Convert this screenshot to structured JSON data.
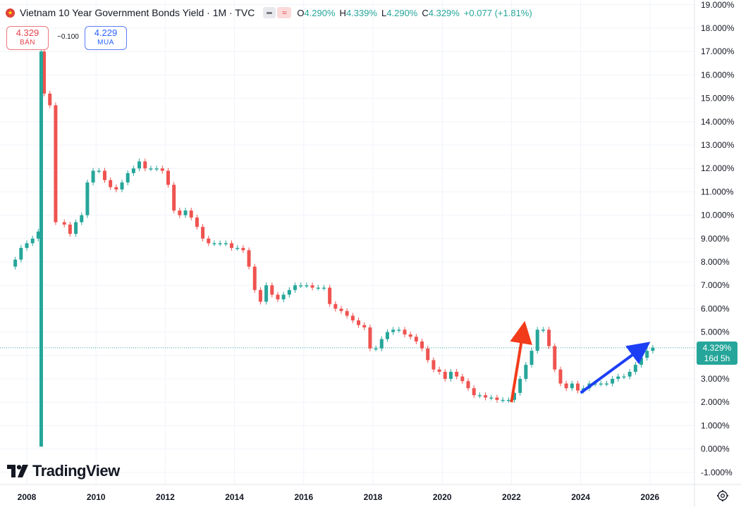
{
  "legend": {
    "title": "Vietnam 10 Year Government Bonds Yield · 1M · TVC",
    "open_label": "O",
    "open": "4.290%",
    "high_label": "H",
    "high": "4.339%",
    "low_label": "L",
    "low": "4.290%",
    "close_label": "C",
    "close": "4.329%",
    "change": "+0.077 (+1.81%)",
    "flag_icon": "vietnam-flag-icon"
  },
  "trade": {
    "sell_price": "4.329",
    "sell_label": "BÁN",
    "spread": "−0.100",
    "buy_price": "4.229",
    "buy_label": "MUA"
  },
  "last_price": {
    "value": "4.329%",
    "countdown": "16d 5h"
  },
  "brand": {
    "name": "TradingView"
  },
  "colors": {
    "up": "#26a69a",
    "down": "#ef5350",
    "accent": "#2962ff",
    "grid": "#f0f3fa",
    "annotation_up": "#f23b1a",
    "annotation_trend": "#1c3ff5"
  },
  "chart_data": {
    "type": "candlestick",
    "frequency": "1M",
    "title": "Vietnam 10 Year Government Bonds Yield · 1M · TVC",
    "ylim": [
      -1.5,
      19.2
    ],
    "y_ticks": [
      "19.000%",
      "18.000%",
      "17.000%",
      "16.000%",
      "15.000%",
      "14.000%",
      "13.000%",
      "12.000%",
      "11.000%",
      "10.000%",
      "9.000%",
      "8.000%",
      "7.000%",
      "6.000%",
      "5.000%",
      "4.000%",
      "3.000%",
      "2.000%",
      "1.000%",
      "0.000%",
      "-1.000%"
    ],
    "x_ticks": [
      "2008",
      "2010",
      "2012",
      "2014",
      "2016",
      "2018",
      "2020",
      "2022",
      "2024",
      "2026"
    ],
    "last_value": 4.329,
    "series": [
      {
        "name": "Vietnam 10 Year Government Bonds Yield",
        "points": [
          [
            "2007-09",
            8.1
          ],
          [
            "2007-11",
            8.6
          ],
          [
            "2008-01",
            8.8
          ],
          [
            "2008-03",
            9.0
          ],
          [
            "2008-05",
            9.3
          ],
          [
            "2008-06",
            17.0
          ],
          [
            "2008-07",
            15.2
          ],
          [
            "2008-09",
            14.7
          ],
          [
            "2008-11",
            9.7
          ],
          [
            "2009-02",
            9.6
          ],
          [
            "2009-04",
            9.2
          ],
          [
            "2009-06",
            9.7
          ],
          [
            "2009-08",
            10.0
          ],
          [
            "2009-10",
            11.4
          ],
          [
            "2009-12",
            11.9
          ],
          [
            "2010-02",
            11.9
          ],
          [
            "2010-04",
            11.5
          ],
          [
            "2010-06",
            11.2
          ],
          [
            "2010-08",
            11.1
          ],
          [
            "2010-10",
            11.4
          ],
          [
            "2010-12",
            11.8
          ],
          [
            "2011-02",
            12.0
          ],
          [
            "2011-04",
            12.3
          ],
          [
            "2011-06",
            12.0
          ],
          [
            "2011-08",
            12.0
          ],
          [
            "2011-10",
            12.0
          ],
          [
            "2011-12",
            11.9
          ],
          [
            "2012-02",
            11.3
          ],
          [
            "2012-04",
            10.2
          ],
          [
            "2012-06",
            10.0
          ],
          [
            "2012-08",
            10.2
          ],
          [
            "2012-10",
            9.9
          ],
          [
            "2012-12",
            9.5
          ],
          [
            "2013-02",
            9.0
          ],
          [
            "2013-04",
            8.8
          ],
          [
            "2013-06",
            8.8
          ],
          [
            "2013-08",
            8.8
          ],
          [
            "2013-10",
            8.8
          ],
          [
            "2013-12",
            8.6
          ],
          [
            "2014-02",
            8.6
          ],
          [
            "2014-04",
            8.5
          ],
          [
            "2014-06",
            7.8
          ],
          [
            "2014-08",
            6.8
          ],
          [
            "2014-10",
            6.3
          ],
          [
            "2014-12",
            7.0
          ],
          [
            "2015-02",
            6.6
          ],
          [
            "2015-04",
            6.4
          ],
          [
            "2015-06",
            6.6
          ],
          [
            "2015-08",
            6.8
          ],
          [
            "2015-10",
            7.0
          ],
          [
            "2015-12",
            7.0
          ],
          [
            "2016-02",
            7.0
          ],
          [
            "2016-04",
            6.9
          ],
          [
            "2016-06",
            6.9
          ],
          [
            "2016-08",
            6.9
          ],
          [
            "2016-10",
            6.2
          ],
          [
            "2016-12",
            6.0
          ],
          [
            "2017-02",
            5.9
          ],
          [
            "2017-04",
            5.7
          ],
          [
            "2017-06",
            5.5
          ],
          [
            "2017-08",
            5.3
          ],
          [
            "2017-10",
            5.2
          ],
          [
            "2017-12",
            4.3
          ],
          [
            "2018-02",
            4.3
          ],
          [
            "2018-04",
            4.7
          ],
          [
            "2018-06",
            5.0
          ],
          [
            "2018-08",
            5.1
          ],
          [
            "2018-10",
            5.1
          ],
          [
            "2018-12",
            4.9
          ],
          [
            "2019-02",
            4.8
          ],
          [
            "2019-04",
            4.6
          ],
          [
            "2019-06",
            4.3
          ],
          [
            "2019-08",
            3.8
          ],
          [
            "2019-10",
            3.4
          ],
          [
            "2019-12",
            3.3
          ],
          [
            "2020-02",
            3.0
          ],
          [
            "2020-04",
            3.3
          ],
          [
            "2020-06",
            3.1
          ],
          [
            "2020-08",
            2.9
          ],
          [
            "2020-10",
            2.6
          ],
          [
            "2020-12",
            2.3
          ],
          [
            "2021-02",
            2.3
          ],
          [
            "2021-04",
            2.2
          ],
          [
            "2021-06",
            2.2
          ],
          [
            "2021-08",
            2.1
          ],
          [
            "2021-10",
            2.1
          ],
          [
            "2021-12",
            2.1
          ],
          [
            "2022-02",
            2.4
          ],
          [
            "2022-04",
            3.0
          ],
          [
            "2022-06",
            3.6
          ],
          [
            "2022-08",
            4.2
          ],
          [
            "2022-10",
            5.1
          ],
          [
            "2022-12",
            5.1
          ],
          [
            "2023-02",
            4.4
          ],
          [
            "2023-04",
            3.4
          ],
          [
            "2023-06",
            2.8
          ],
          [
            "2023-08",
            2.6
          ],
          [
            "2023-10",
            2.8
          ],
          [
            "2023-12",
            2.5
          ],
          [
            "2024-02",
            2.6
          ],
          [
            "2024-04",
            2.8
          ],
          [
            "2024-06",
            2.8
          ],
          [
            "2024-08",
            2.8
          ],
          [
            "2024-10",
            2.8
          ],
          [
            "2024-12",
            3.0
          ],
          [
            "2025-02",
            3.1
          ],
          [
            "2025-04",
            3.1
          ],
          [
            "2025-06",
            3.3
          ],
          [
            "2025-08",
            3.6
          ],
          [
            "2025-10",
            3.9
          ],
          [
            "2025-12",
            4.2
          ],
          [
            "2026-02",
            4.33
          ]
        ]
      }
    ],
    "annotations": [
      {
        "type": "arrow",
        "color": "red",
        "from": [
          "2022-01",
          2.0
        ],
        "to": [
          "2022-05",
          5.0
        ]
      },
      {
        "type": "arrow",
        "color": "blue",
        "from": [
          "2024-01",
          2.4
        ],
        "to": [
          "2025-10",
          4.3
        ]
      }
    ]
  }
}
